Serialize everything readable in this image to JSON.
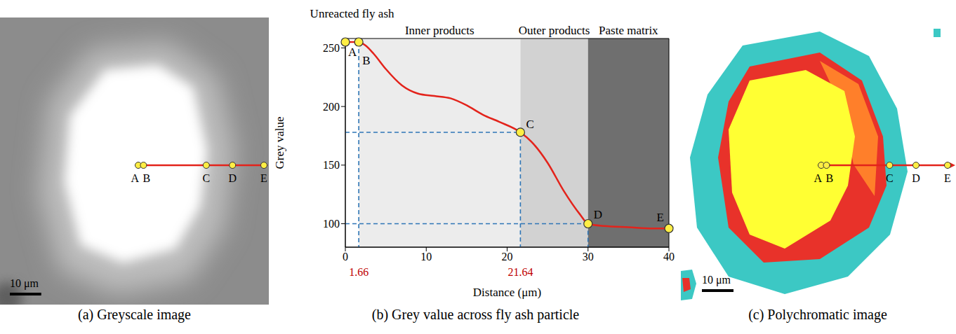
{
  "figure": {
    "panels": [
      {
        "caption": "(a) Greyscale image",
        "scale_bar": {
          "value": 10,
          "label": "10 μm"
        },
        "point_labels": [
          "A",
          "B",
          "C",
          "D",
          "E"
        ]
      },
      {
        "caption": "(b) Grey value across fly ash particle"
      },
      {
        "caption": "(c) Polychromatic image",
        "scale_bar": {
          "value": 10,
          "label": "10 μm"
        },
        "point_labels": [
          "A",
          "B",
          "C",
          "D",
          "E"
        ]
      }
    ]
  },
  "chart_data": {
    "type": "line",
    "x_label": "Distance (μm)",
    "y_label": "Grey value",
    "color": "#e3231b",
    "x": [
      0,
      1.66,
      2.5,
      3.5,
      5,
      7,
      9,
      11,
      13,
      15,
      17,
      19,
      21.64,
      23,
      25,
      27,
      29,
      30,
      32,
      35,
      38,
      40
    ],
    "values": [
      255,
      255,
      252,
      245,
      232,
      218,
      211,
      209,
      207,
      201,
      193,
      187,
      178,
      170,
      152,
      128,
      108,
      100,
      98,
      97,
      96,
      96
    ],
    "xlim": [
      0,
      40
    ],
    "xticks": [
      0,
      10,
      20,
      30,
      40
    ],
    "ylim": [
      80,
      258
    ],
    "yticks": [
      100,
      150,
      200,
      250
    ],
    "highlighted_ticks": {
      "color": "#c00000",
      "x": [
        1.66,
        21.64
      ],
      "y": [
        255,
        178
      ]
    },
    "points": {
      "color": "#ffee44",
      "items": [
        {
          "label": "A",
          "x": 0,
          "y": 255
        },
        {
          "label": "B",
          "x": 1.66,
          "y": 255
        },
        {
          "label": "C",
          "x": 21.64,
          "y": 178
        },
        {
          "label": "D",
          "x": 30,
          "y": 100
        },
        {
          "label": "E",
          "x": 40,
          "y": 96
        }
      ]
    },
    "guides": {
      "through": [
        "B",
        "C",
        "D"
      ],
      "color": "#2e75b6",
      "line_style": "dashed"
    },
    "regions": [
      {
        "label": "Unreacted fly ash",
        "x": [
          0,
          1.66
        ],
        "color": "#ffffff"
      },
      {
        "label": "Inner products",
        "x": [
          1.66,
          21.64
        ],
        "color": "#ececec"
      },
      {
        "label": "Outer products",
        "x": [
          21.64,
          30
        ],
        "color": "#d2d2d2"
      },
      {
        "label": "Paste matrix",
        "x": [
          30,
          40
        ],
        "color": "#6f6f6f"
      }
    ]
  }
}
